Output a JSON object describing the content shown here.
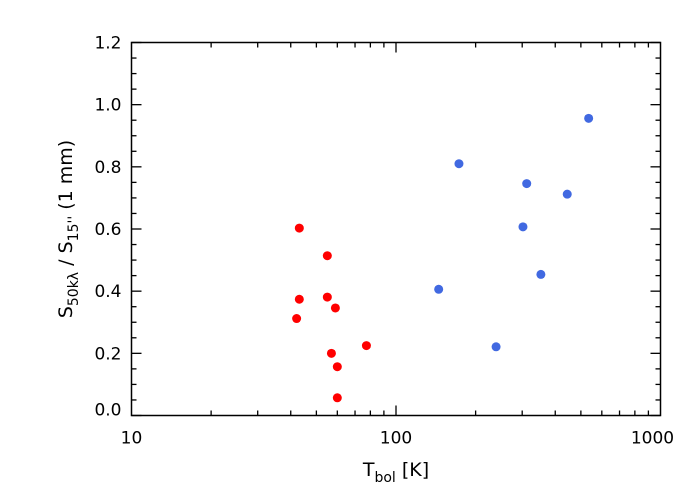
{
  "chart_data": {
    "type": "scatter",
    "title": "",
    "xlabel": {
      "main": "T",
      "sub": "bol",
      "suffix": " [K]"
    },
    "ylabel": {
      "main": "S",
      "sub1": "50kλ",
      "mid": " / S",
      "sub2": "15''",
      "suffix": " (1 mm)"
    },
    "xscale": "log",
    "xlim": [
      10,
      1000
    ],
    "ylim": [
      0,
      1.2
    ],
    "grid": false,
    "x_ticks": [
      10,
      100,
      1000
    ],
    "x_tick_labels": [
      "10",
      "100",
      "1000"
    ],
    "y_ticks": [
      0,
      0.2,
      0.4,
      0.6,
      0.8,
      1.0,
      1.2
    ],
    "y_tick_labels": [
      "0.0",
      "0.2",
      "0.4",
      "0.6",
      "0.8",
      "1.0",
      "1.2"
    ],
    "series": [
      {
        "color": "#ff0000",
        "points": [
          {
            "x": 43.1,
            "y": 0.603
          },
          {
            "x": 55.0,
            "y": 0.514
          },
          {
            "x": 43.1,
            "y": 0.374
          },
          {
            "x": 55.0,
            "y": 0.381
          },
          {
            "x": 59.0,
            "y": 0.346
          },
          {
            "x": 42.1,
            "y": 0.312
          },
          {
            "x": 57.0,
            "y": 0.2
          },
          {
            "x": 60.0,
            "y": 0.157
          },
          {
            "x": 77.3,
            "y": 0.225
          },
          {
            "x": 60.0,
            "y": 0.057
          }
        ]
      },
      {
        "color": "#4169e1",
        "points": [
          {
            "x": 145,
            "y": 0.406
          },
          {
            "x": 173,
            "y": 0.81
          },
          {
            "x": 239,
            "y": 0.221
          },
          {
            "x": 302,
            "y": 0.607
          },
          {
            "x": 312,
            "y": 0.746
          },
          {
            "x": 353,
            "y": 0.454
          },
          {
            "x": 444,
            "y": 0.712
          },
          {
            "x": 535,
            "y": 0.956
          }
        ]
      }
    ]
  }
}
